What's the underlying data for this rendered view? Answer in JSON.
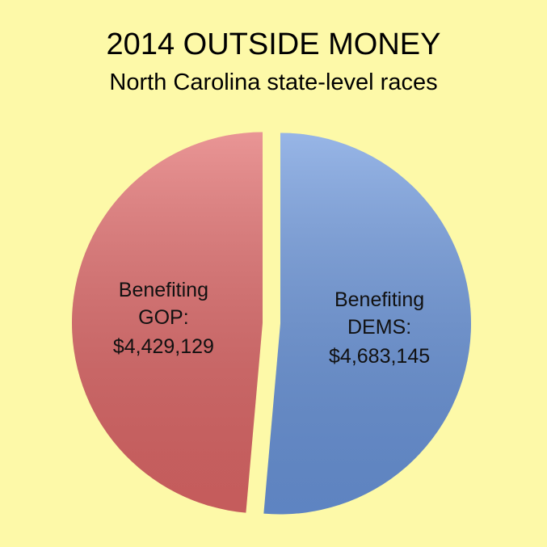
{
  "chart_data": {
    "type": "pie",
    "title": "2014 OUTSIDE MONEY",
    "subtitle": "North Carolina state-level races",
    "categories": [
      "Benefiting DEMS:",
      "Benefiting GOP:"
    ],
    "values": [
      4683145,
      4429129
    ],
    "value_labels": [
      "$4,683,145",
      "$4,429,129"
    ],
    "colors": [
      "#6b96dc",
      "#e06868"
    ]
  }
}
